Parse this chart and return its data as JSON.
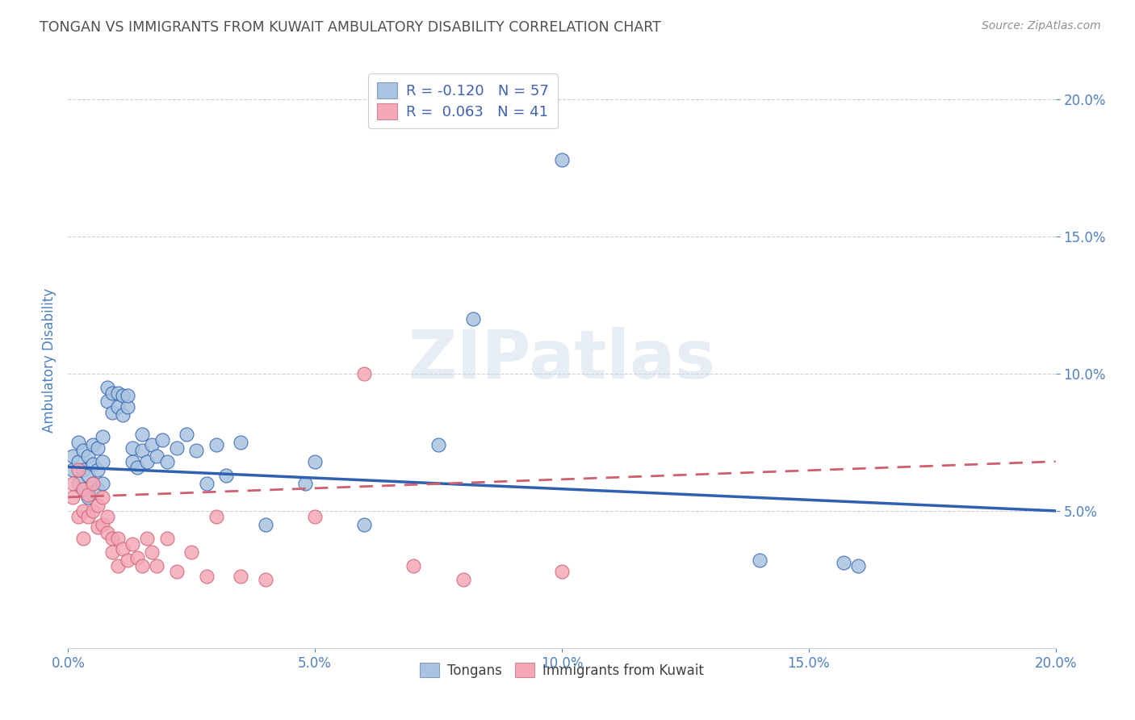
{
  "title": "TONGAN VS IMMIGRANTS FROM KUWAIT AMBULATORY DISABILITY CORRELATION CHART",
  "source": "Source: ZipAtlas.com",
  "ylabel": "Ambulatory Disability",
  "xlim": [
    0.0,
    0.2
  ],
  "ylim": [
    0.0,
    0.21
  ],
  "yticks": [
    0.05,
    0.1,
    0.15,
    0.2
  ],
  "xticks": [
    0.0,
    0.05,
    0.1,
    0.15,
    0.2
  ],
  "xtick_labels": [
    "0.0%",
    "5.0%",
    "10.0%",
    "15.0%",
    "20.0%"
  ],
  "ytick_labels": [
    "5.0%",
    "10.0%",
    "15.0%",
    "20.0%"
  ],
  "blue_R": "-0.120",
  "blue_N": "57",
  "pink_R": "0.063",
  "pink_N": "41",
  "blue_scatter_color": "#a8c4e0",
  "pink_scatter_color": "#f4a8b8",
  "blue_line_color": "#3060b0",
  "pink_line_color": "#d06070",
  "blue_legend_color": "#a8c4e0",
  "pink_legend_color": "#f4a8b8",
  "title_color": "#505050",
  "tick_label_color": "#5080c0",
  "legend_text_color": "#4060b0",
  "watermark_color": "#c8d8e8",
  "background_color": "#ffffff",
  "grid_color": "#d0d0d0",
  "blue_line_start_y": 0.066,
  "blue_line_end_y": 0.05,
  "pink_line_start_y": 0.055,
  "pink_line_end_y": 0.068,
  "blue_scatter_x": [
    0.001,
    0.001,
    0.002,
    0.002,
    0.002,
    0.003,
    0.003,
    0.003,
    0.004,
    0.004,
    0.004,
    0.005,
    0.005,
    0.005,
    0.006,
    0.006,
    0.006,
    0.007,
    0.007,
    0.007,
    0.008,
    0.008,
    0.009,
    0.009,
    0.01,
    0.01,
    0.011,
    0.011,
    0.012,
    0.012,
    0.013,
    0.013,
    0.014,
    0.015,
    0.015,
    0.016,
    0.017,
    0.018,
    0.019,
    0.02,
    0.022,
    0.024,
    0.026,
    0.028,
    0.03,
    0.032,
    0.035,
    0.04,
    0.048,
    0.05,
    0.06,
    0.075,
    0.082,
    0.1,
    0.14,
    0.157,
    0.16
  ],
  "blue_scatter_y": [
    0.065,
    0.07,
    0.06,
    0.068,
    0.075,
    0.058,
    0.065,
    0.072,
    0.055,
    0.063,
    0.07,
    0.06,
    0.067,
    0.074,
    0.058,
    0.065,
    0.073,
    0.06,
    0.068,
    0.077,
    0.09,
    0.095,
    0.086,
    0.093,
    0.088,
    0.093,
    0.085,
    0.092,
    0.088,
    0.092,
    0.068,
    0.073,
    0.066,
    0.078,
    0.072,
    0.068,
    0.074,
    0.07,
    0.076,
    0.068,
    0.073,
    0.078,
    0.072,
    0.06,
    0.074,
    0.063,
    0.075,
    0.045,
    0.06,
    0.068,
    0.045,
    0.074,
    0.12,
    0.178,
    0.032,
    0.031,
    0.03
  ],
  "pink_scatter_x": [
    0.001,
    0.001,
    0.002,
    0.002,
    0.003,
    0.003,
    0.003,
    0.004,
    0.004,
    0.005,
    0.005,
    0.006,
    0.006,
    0.007,
    0.007,
    0.008,
    0.008,
    0.009,
    0.009,
    0.01,
    0.01,
    0.011,
    0.012,
    0.013,
    0.014,
    0.015,
    0.016,
    0.017,
    0.018,
    0.02,
    0.022,
    0.025,
    0.028,
    0.03,
    0.035,
    0.04,
    0.05,
    0.06,
    0.07,
    0.08,
    0.1
  ],
  "pink_scatter_y": [
    0.06,
    0.055,
    0.065,
    0.048,
    0.058,
    0.05,
    0.04,
    0.056,
    0.048,
    0.06,
    0.05,
    0.052,
    0.044,
    0.055,
    0.045,
    0.042,
    0.048,
    0.04,
    0.035,
    0.04,
    0.03,
    0.036,
    0.032,
    0.038,
    0.033,
    0.03,
    0.04,
    0.035,
    0.03,
    0.04,
    0.028,
    0.035,
    0.026,
    0.048,
    0.026,
    0.025,
    0.048,
    0.1,
    0.03,
    0.025,
    0.028
  ]
}
